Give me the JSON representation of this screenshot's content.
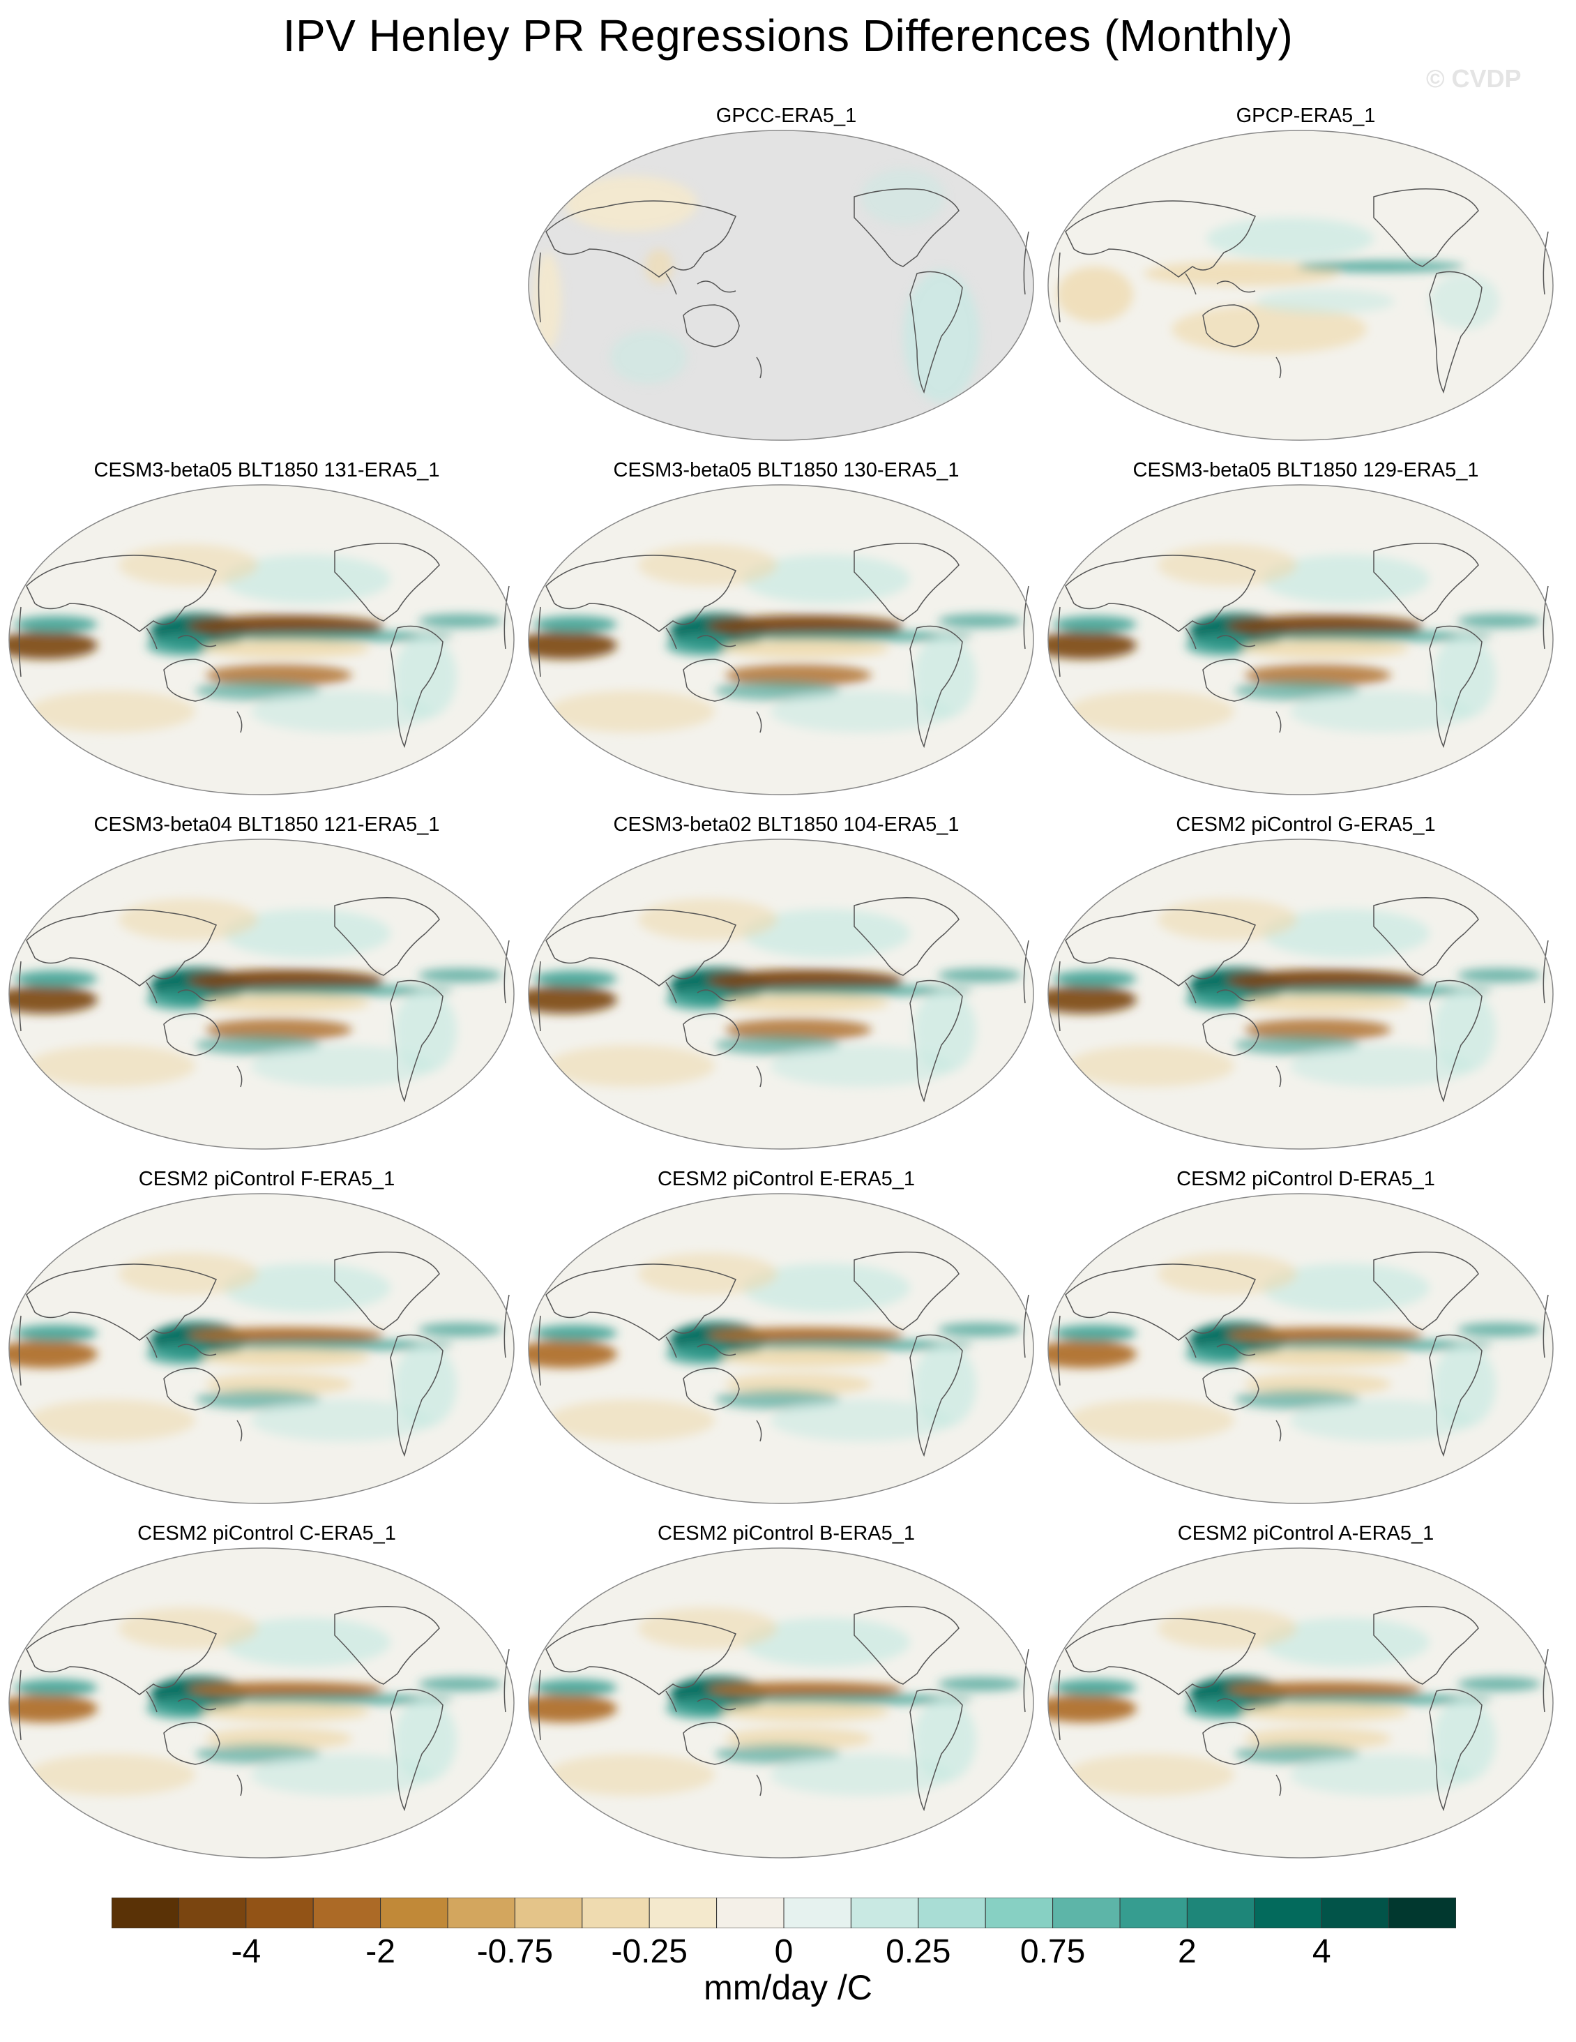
{
  "title": "IPV Henley PR Regressions Differences (Monthly)",
  "watermark": "© CVDP",
  "panels": [
    {
      "label": "GPCC-ERA5_1",
      "style": "land-only"
    },
    {
      "label": "GPCP-ERA5_1",
      "style": "weak"
    },
    {
      "label": "CESM3-beta05 BLT1850 131-ERA5_1",
      "style": "strong"
    },
    {
      "label": "CESM3-beta05 BLT1850 130-ERA5_1",
      "style": "strong"
    },
    {
      "label": "CESM3-beta05 BLT1850 129-ERA5_1",
      "style": "strong"
    },
    {
      "label": "CESM3-beta04 BLT1850 121-ERA5_1",
      "style": "strong"
    },
    {
      "label": "CESM3-beta02 BLT1850 104-ERA5_1",
      "style": "strong"
    },
    {
      "label": "CESM2 piControl G-ERA5_1",
      "style": "strong"
    },
    {
      "label": "CESM2 piControl F-ERA5_1",
      "style": "medium"
    },
    {
      "label": "CESM2 piControl E-ERA5_1",
      "style": "medium"
    },
    {
      "label": "CESM2 piControl D-ERA5_1",
      "style": "medium"
    },
    {
      "label": "CESM2 piControl C-ERA5_1",
      "style": "medium"
    },
    {
      "label": "CESM2 piControl B-ERA5_1",
      "style": "medium"
    },
    {
      "label": "CESM2 piControl A-ERA5_1",
      "style": "medium"
    }
  ],
  "colorbar": {
    "colors": [
      "#5a3206",
      "#7a4510",
      "#925316",
      "#ac6a26",
      "#c18938",
      "#d3a65e",
      "#e4c489",
      "#efdbb0",
      "#f4e9cd",
      "#f4f0e8",
      "#e6f2ef",
      "#c9e9e3",
      "#a9ddd5",
      "#87d0c3",
      "#5db5a8",
      "#369d90",
      "#1e8679",
      "#036a5c",
      "#025449",
      "#01382f"
    ],
    "labels": [
      "-4",
      "-2",
      "-0.75",
      "-0.25",
      "0",
      "0.25",
      "0.75",
      "2",
      "4"
    ],
    "units": "mm/day /C"
  }
}
